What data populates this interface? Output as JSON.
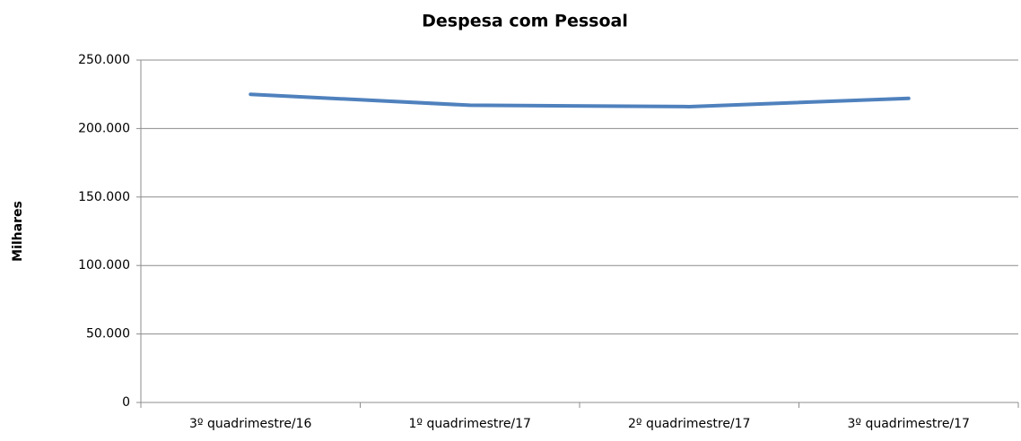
{
  "chart_data": {
    "type": "line",
    "title": "Despesa com Pessoal",
    "y_label": "Milhares",
    "categories": [
      "3º quadrimestre/16",
      "1º quadrimestre/17",
      "2º quadrimestre/17",
      "3º quadrimestre/17"
    ],
    "series": [
      {
        "name": "Despesa com Pessoal",
        "color": "#4f81bd",
        "values": [
          225000,
          217000,
          216000,
          222000
        ]
      }
    ],
    "ylim": [
      0,
      250000
    ],
    "yticks": [
      0,
      {
        "value": 50000,
        "label": "50.000"
      },
      {
        "value": 100000,
        "label": "100.000"
      },
      {
        "value": 150000,
        "label": "150.000"
      },
      {
        "value": 200000,
        "label": "200.000"
      },
      {
        "value": 250000,
        "label": "250.000"
      }
    ],
    "grid": true
  }
}
